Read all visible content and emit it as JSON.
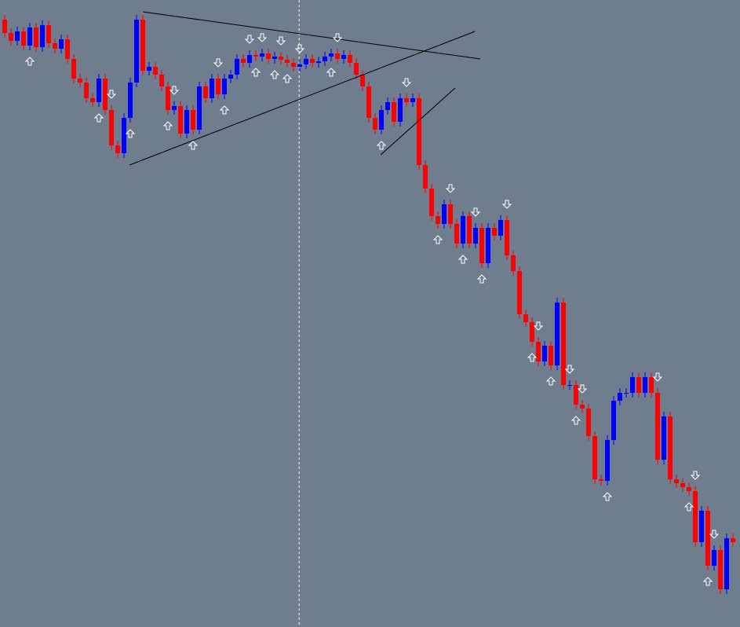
{
  "chart_data": {
    "type": "candlestick",
    "background": "#6f7d8e",
    "up_color": "#0000ff",
    "down_color": "#ff0000",
    "line_color": "#000000",
    "marker_color": "#ffffff",
    "xlim": [
      -0.75,
      117.125
    ],
    "ylim": [
      0,
      798
    ],
    "open": [
      773,
      756,
      746,
      758,
      740,
      763,
      738,
      766,
      743,
      736,
      748,
      723,
      698,
      693,
      673,
      668,
      698,
      658,
      613,
      603,
      648,
      693,
      773,
      708,
      713,
      703,
      688,
      658,
      663,
      628,
      658,
      633,
      688,
      673,
      698,
      678,
      698,
      703,
      723,
      718,
      728,
      726,
      730,
      723,
      726,
      722,
      718,
      713,
      716,
      723,
      718,
      720,
      726,
      730,
      723,
      728,
      718,
      703,
      688,
      648,
      633,
      658,
      668,
      643,
      673,
      668,
      673,
      588,
      558,
      523,
      513,
      538,
      513,
      488,
      523,
      488,
      508,
      463,
      508,
      498,
      518,
      473,
      453,
      398,
      388,
      363,
      338,
      358,
      333,
      413,
      308,
      308,
      283,
      278,
      243,
      188,
      186,
      238,
      288,
      298,
      298,
      318,
      298,
      318,
      298,
      213,
      268,
      188,
      183,
      178,
      173,
      108,
      148,
      78,
      98,
      48,
      113
    ],
    "high": [
      779,
      762,
      764,
      764,
      769,
      769,
      772,
      772,
      749,
      754,
      754,
      729,
      704,
      699,
      679,
      704,
      704,
      664,
      619,
      654,
      699,
      779,
      779,
      719,
      719,
      709,
      694,
      669,
      669,
      664,
      664,
      694,
      694,
      704,
      704,
      704,
      709,
      729,
      729,
      734,
      734,
      736,
      736,
      732,
      732,
      728,
      724,
      722,
      729,
      729,
      726,
      732,
      736,
      736,
      734,
      734,
      724,
      709,
      694,
      654,
      664,
      674,
      674,
      679,
      679,
      679,
      679,
      594,
      564,
      529,
      544,
      544,
      519,
      529,
      529,
      514,
      514,
      514,
      514,
      524,
      524,
      479,
      459,
      404,
      394,
      369,
      364,
      364,
      419,
      419,
      314,
      314,
      289,
      284,
      249,
      194,
      244,
      294,
      304,
      304,
      324,
      324,
      324,
      324,
      304,
      274,
      274,
      194,
      189,
      184,
      179,
      154,
      154,
      104,
      104,
      119,
      119
    ],
    "low": [
      750,
      740,
      740,
      734,
      734,
      732,
      732,
      737,
      730,
      730,
      717,
      692,
      687,
      667,
      662,
      662,
      652,
      607,
      597,
      597,
      642,
      687,
      702,
      702,
      697,
      682,
      652,
      652,
      622,
      622,
      627,
      627,
      667,
      667,
      672,
      672,
      692,
      697,
      712,
      712,
      720,
      720,
      717,
      717,
      716,
      712,
      707,
      707,
      710,
      712,
      712,
      714,
      720,
      717,
      717,
      712,
      697,
      682,
      642,
      627,
      627,
      652,
      637,
      637,
      662,
      662,
      582,
      552,
      517,
      507,
      507,
      507,
      482,
      482,
      482,
      482,
      457,
      457,
      492,
      492,
      467,
      447,
      392,
      382,
      357,
      332,
      332,
      327,
      327,
      302,
      302,
      277,
      272,
      237,
      182,
      180,
      180,
      232,
      282,
      292,
      292,
      292,
      292,
      292,
      207,
      207,
      182,
      177,
      172,
      167,
      102,
      102,
      72,
      72,
      42,
      42,
      102
    ],
    "close": [
      756,
      746,
      758,
      740,
      763,
      738,
      766,
      743,
      736,
      748,
      723,
      698,
      693,
      673,
      668,
      698,
      658,
      613,
      603,
      648,
      693,
      773,
      708,
      713,
      703,
      688,
      658,
      663,
      628,
      658,
      633,
      688,
      673,
      698,
      678,
      698,
      703,
      723,
      718,
      728,
      726,
      730,
      723,
      726,
      722,
      718,
      713,
      716,
      723,
      718,
      720,
      726,
      730,
      723,
      728,
      718,
      703,
      688,
      648,
      633,
      658,
      668,
      643,
      673,
      668,
      673,
      588,
      558,
      523,
      513,
      538,
      513,
      488,
      523,
      488,
      508,
      463,
      508,
      498,
      518,
      473,
      453,
      398,
      388,
      363,
      338,
      358,
      333,
      413,
      308,
      308,
      283,
      278,
      243,
      188,
      186,
      238,
      288,
      298,
      298,
      318,
      298,
      318,
      298,
      213,
      268,
      188,
      183,
      178,
      173,
      108,
      148,
      78,
      98,
      48,
      113,
      108
    ],
    "up_arrows": [
      4,
      15,
      20,
      26,
      30,
      35,
      40,
      43,
      45,
      52,
      60,
      69,
      73,
      76,
      84,
      87,
      91,
      96,
      109,
      112
    ],
    "down_arrows": [
      17,
      27,
      34,
      39,
      41,
      44,
      47,
      53,
      64,
      71,
      75,
      80,
      85,
      90,
      92,
      104,
      110,
      113
    ],
    "trendlines": [
      {
        "x": [
          22,
          75.75
        ],
        "y": [
          783,
          723
        ]
      },
      {
        "x": [
          19.9,
          74.9
        ],
        "y": [
          588,
          758
        ]
      },
      {
        "x": [
          59.9,
          71.75
        ],
        "y": [
          601,
          686
        ]
      }
    ],
    "vline": 46.9
  }
}
